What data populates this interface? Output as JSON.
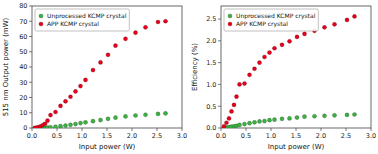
{
  "chart_data": [
    {
      "type": "scatter",
      "xlabel": "Input power (W)",
      "ylabel": "515 nm Output power (mW)",
      "xlim": [
        0.0,
        3.0
      ],
      "ylim": [
        0,
        80
      ],
      "xticks": [
        {
          "value": 0.0,
          "label": "0.0"
        },
        0.5,
        {
          "value": 1.0,
          "label": "1.0"
        },
        1.5,
        {
          "value": 2.0,
          "label": "2.0"
        },
        2.5,
        {
          "value": 3.0,
          "label": "3.0"
        }
      ],
      "yticks": [
        0,
        10,
        20,
        30,
        40,
        50,
        60,
        70,
        80
      ],
      "legend": "upper left",
      "series": [
        {
          "name": "Unprocessed KCMP crystal",
          "color": "#3cb043",
          "x": [
            0.06,
            0.11,
            0.16,
            0.21,
            0.26,
            0.31,
            0.37,
            0.47,
            0.57,
            0.67,
            0.77,
            0.87,
            0.97,
            1.07,
            1.22,
            1.37,
            1.52,
            1.67,
            1.87,
            2.07,
            2.27,
            2.52,
            2.67
          ],
          "values": [
            0.0,
            0.05,
            0.1,
            0.15,
            0.2,
            0.3,
            0.5,
            0.8,
            1.2,
            1.6,
            2.1,
            2.6,
            3.2,
            3.7,
            4.5,
            5.2,
            6.0,
            6.8,
            7.6,
            8.2,
            8.7,
            9.2,
            9.6
          ]
        },
        {
          "name": "APP KCMP crystal",
          "color": "#e8001c",
          "x": [
            0.06,
            0.11,
            0.16,
            0.21,
            0.26,
            0.31,
            0.37,
            0.47,
            0.57,
            0.67,
            0.77,
            0.87,
            0.97,
            1.07,
            1.22,
            1.37,
            1.52,
            1.67,
            1.87,
            2.07,
            2.27,
            2.52,
            2.67
          ],
          "values": [
            0.1,
            0.4,
            0.9,
            1.8,
            2.8,
            4.8,
            8.5,
            10.5,
            14.5,
            17.5,
            20.5,
            24.0,
            27.5,
            31.5,
            38.0,
            43.0,
            48.0,
            54.0,
            58.5,
            62.5,
            66.0,
            69.5,
            70.0
          ]
        }
      ]
    },
    {
      "type": "scatter",
      "xlabel": "Input power (W)",
      "ylabel": "Efficiency (%)",
      "xlim": [
        0.0,
        3.0
      ],
      "ylim": [
        0.0,
        2.8
      ],
      "xticks": [
        {
          "value": 0.0,
          "label": "0.0"
        },
        0.5,
        {
          "value": 1.0,
          "label": "1.0"
        },
        1.5,
        {
          "value": 2.0,
          "label": "2.0"
        },
        2.5,
        {
          "value": 3.0,
          "label": "3.0"
        }
      ],
      "yticks": [
        {
          "value": 0.0,
          "label": "0.0"
        },
        0.5,
        {
          "value": 1.0,
          "label": "1.0"
        },
        1.5,
        {
          "value": 2.0,
          "label": "2.0"
        },
        2.5
      ],
      "legend": "upper left",
      "series": [
        {
          "name": "Unprocessed KCMP crystal",
          "color": "#3cb043",
          "x": [
            0.06,
            0.11,
            0.16,
            0.21,
            0.26,
            0.31,
            0.37,
            0.47,
            0.57,
            0.67,
            0.77,
            0.87,
            0.97,
            1.07,
            1.22,
            1.37,
            1.52,
            1.67,
            1.87,
            2.07,
            2.27,
            2.52,
            2.67
          ],
          "values": [
            0.0,
            0.01,
            0.02,
            0.03,
            0.04,
            0.05,
            0.07,
            0.09,
            0.11,
            0.13,
            0.15,
            0.16,
            0.18,
            0.19,
            0.21,
            0.22,
            0.24,
            0.26,
            0.27,
            0.28,
            0.29,
            0.3,
            0.31
          ]
        },
        {
          "name": "APP KCMP crystal",
          "color": "#e8001c",
          "x": [
            0.06,
            0.11,
            0.16,
            0.21,
            0.26,
            0.31,
            0.37,
            0.47,
            0.57,
            0.67,
            0.77,
            0.87,
            0.97,
            1.07,
            1.22,
            1.37,
            1.52,
            1.67,
            1.87,
            2.07,
            2.27,
            2.52,
            2.67
          ],
          "values": [
            0.04,
            0.12,
            0.22,
            0.38,
            0.53,
            0.72,
            1.0,
            1.02,
            1.22,
            1.36,
            1.5,
            1.63,
            1.73,
            1.83,
            1.91,
            1.99,
            2.09,
            2.16,
            2.23,
            2.31,
            2.38,
            2.48,
            2.56
          ]
        }
      ]
    }
  ]
}
